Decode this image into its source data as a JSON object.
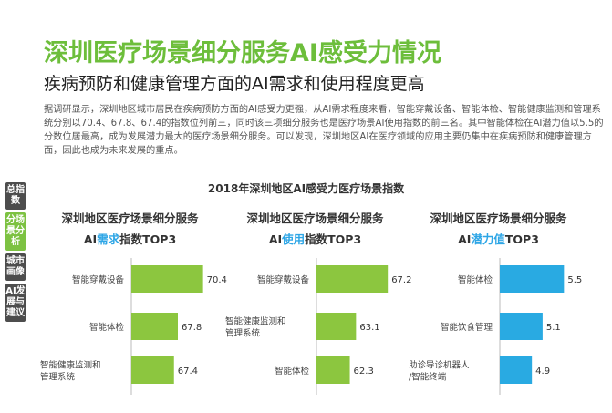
{
  "sidebar": {
    "tabs": [
      {
        "label": "总指数",
        "active": false
      },
      {
        "label": "分场景分析",
        "active": true
      },
      {
        "label": "城市画像",
        "active": false
      },
      {
        "label": "AI发展与建议",
        "active": false
      }
    ]
  },
  "header": {
    "title": "深圳医疗场景细分服务AI感受力情况",
    "subtitle": "疾病预防和健康管理方面的AI需求和使用程度更高"
  },
  "body_text": "据调研显示，深圳地区城市居民在疾病预防方面的AI感受力更强，从AI需求程度来看，智能穿戴设备、智能体检、智能健康监测和管理系统分别以70.4、67.8、67.4的指数位列前三，同时该三项细分服务也是医疗场景AI使用指数的前三名。其中智能体检在AI潜力值以5.5的分数位居最高，成为发展潜力最大的医疗场景细分服务。可以发现，深圳地区AI在医疗领域的应用主要仍集中在疾病预防和健康管理方面，因此也成为未来发展的重点。",
  "figure_title": "2018年深圳地区AI感受力医疗场景指数",
  "colors": {
    "title_green": "#6dbe3b",
    "bar_green": "#8cc63f",
    "bar_blue": "#29aae2",
    "highlight": "#2ea6e6"
  },
  "chart_data": [
    {
      "type": "bar",
      "orientation": "horizontal",
      "title_line1": "深圳地区医疗场景细分服务",
      "title_pre": "AI",
      "title_highlight": "需求",
      "title_post": "指数TOP3",
      "categories": [
        "智能穿戴设备",
        "智能体检",
        "智能健康监测和管理系统"
      ],
      "values": [
        70.4,
        67.8,
        67.4
      ],
      "value_labels": [
        "70.4",
        "67.8",
        "67.4"
      ],
      "xlim": [
        63,
        71
      ],
      "color": "#8cc63f"
    },
    {
      "type": "bar",
      "orientation": "horizontal",
      "title_line1": "深圳地区医疗场景细分服务",
      "title_pre": "AI",
      "title_highlight": "使用",
      "title_post": "指数TOP3",
      "categories": [
        "智能穿戴设备",
        "智能健康监测和管理系统",
        "智能体检"
      ],
      "values": [
        67.2,
        63.1,
        62.3
      ],
      "value_labels": [
        "67.2",
        "63.1",
        "62.3"
      ],
      "xlim": [
        58,
        68
      ],
      "color": "#8cc63f"
    },
    {
      "type": "bar",
      "orientation": "horizontal",
      "title_line1": "深圳地区医疗场景细分服务",
      "title_pre": "AI",
      "title_highlight": "潜力值",
      "title_post": "TOP3",
      "categories": [
        "智能体检",
        "智能饮食管理",
        "助诊导诊机器人/智能终端"
      ],
      "values": [
        5.5,
        5.1,
        4.9
      ],
      "value_labels": [
        "5.5",
        "5.1",
        "4.9"
      ],
      "xlim": [
        4.3,
        5.75
      ],
      "color": "#29aae2"
    }
  ]
}
